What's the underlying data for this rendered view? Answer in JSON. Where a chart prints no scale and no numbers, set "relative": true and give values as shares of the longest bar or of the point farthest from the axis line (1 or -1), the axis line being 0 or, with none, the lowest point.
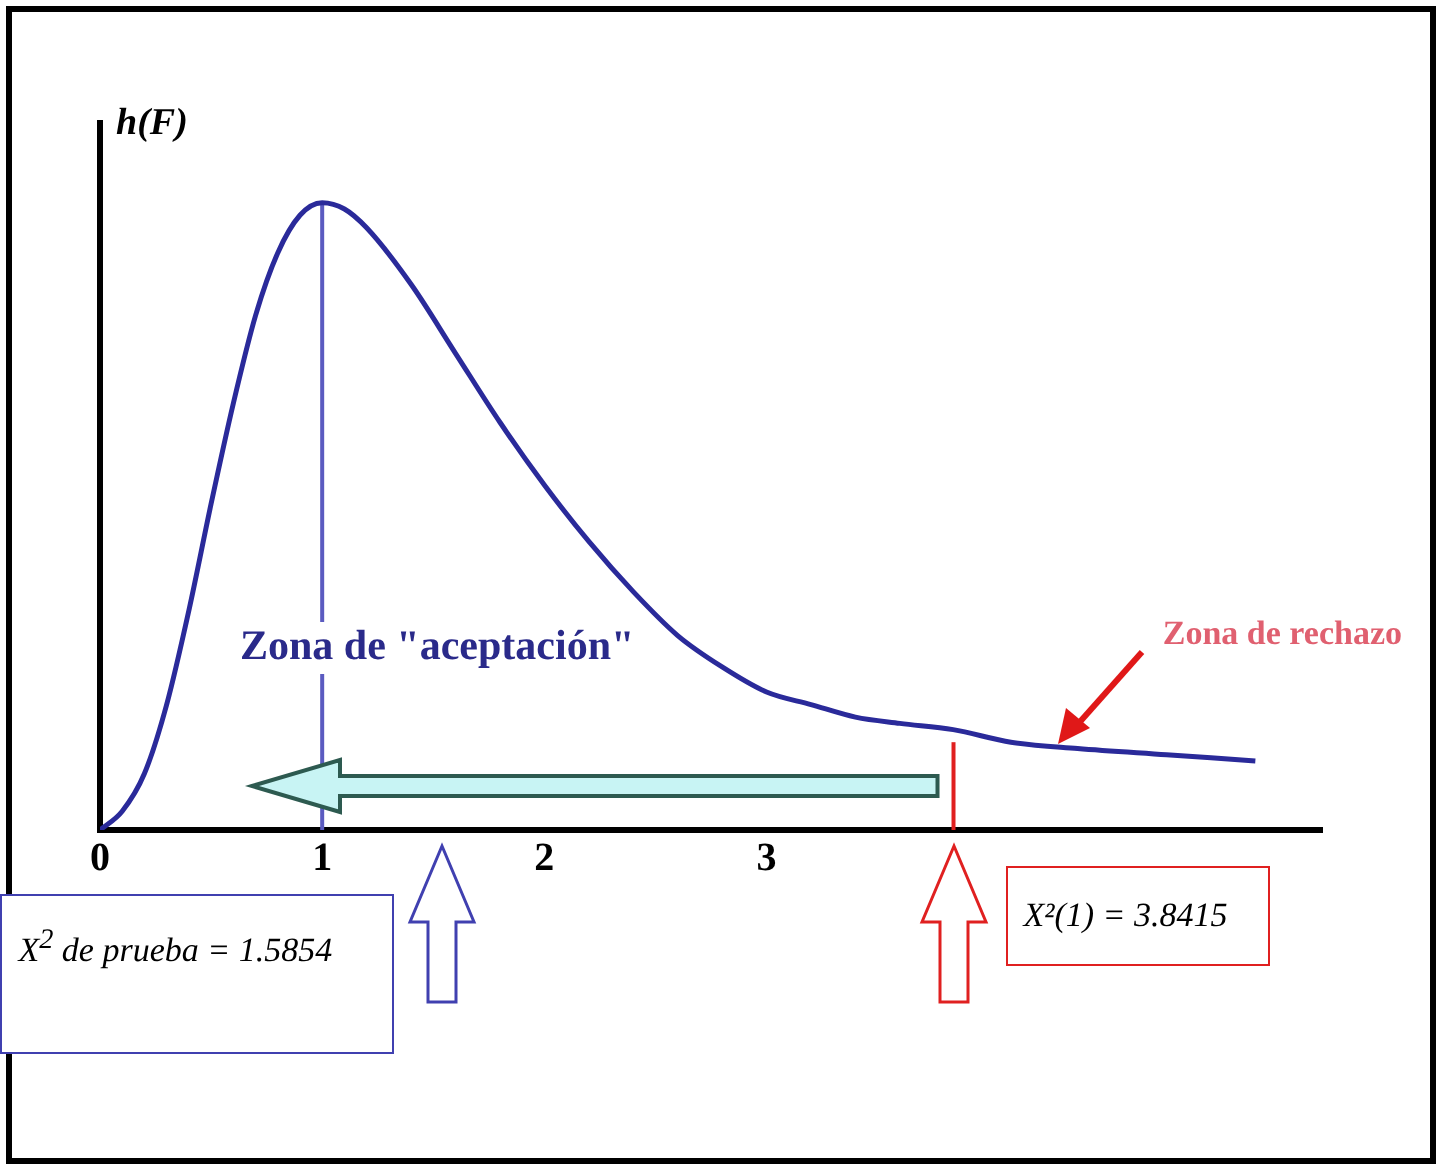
{
  "chart_data": {
    "type": "line",
    "relative": true,
    "ylabel": "h(F)",
    "series": [
      {
        "color": "#2a2a9a",
        "x": [
          0,
          0.1,
          0.2,
          0.3,
          0.4,
          0.5,
          0.6,
          0.7,
          0.8,
          0.9,
          1,
          1.1,
          1.2,
          1.4,
          1.6,
          1.8,
          2,
          2.2,
          2.4,
          2.6,
          2.8,
          3,
          3.2,
          3.4,
          3.6,
          3.84,
          4.1,
          4.4,
          4.8,
          5.2
        ],
        "values": [
          0,
          0.03,
          0.09,
          0.2,
          0.35,
          0.52,
          0.68,
          0.82,
          0.92,
          0.98,
          1,
          0.99,
          0.96,
          0.87,
          0.76,
          0.65,
          0.55,
          0.46,
          0.38,
          0.31,
          0.26,
          0.22,
          0.2,
          0.18,
          0.17,
          0.16,
          0.14,
          0.13,
          0.12,
          0.11
        ]
      }
    ],
    "xlim": [
      0,
      5.5
    ],
    "xticks": [
      0,
      1,
      2,
      3
    ],
    "ref_lines": [
      {
        "axis": "x",
        "value": 1,
        "color": "#5b5bc0"
      },
      {
        "axis": "x",
        "value": 3.8415,
        "color": "#e02020",
        "label": "X²(1) = 3.8415"
      }
    ],
    "annotations": [
      "Zona de \"aceptación\"",
      "Zona de rechazo",
      "X$^{2}$ de prueba = 1.5854"
    ],
    "grid": false,
    "legend": false,
    "marker": "none",
    "line_style": "solid"
  }
}
